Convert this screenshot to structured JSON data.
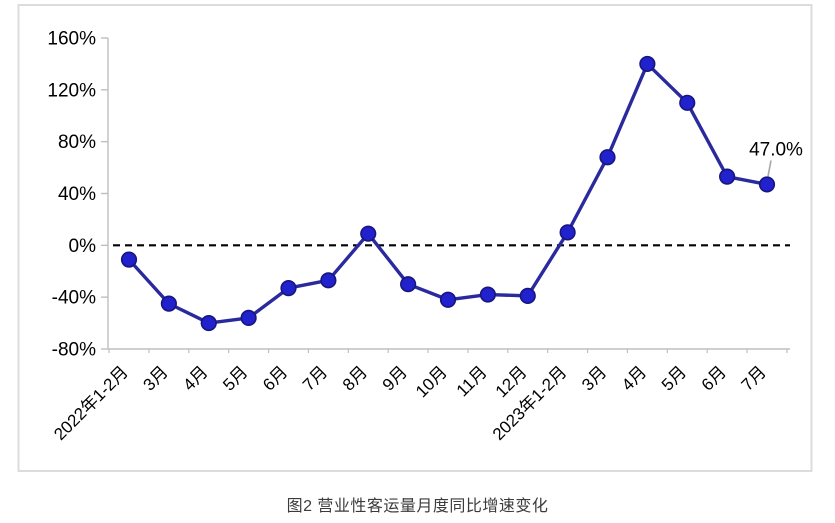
{
  "figure": {
    "caption": "图2 营业性客运量月度同比增速变化"
  },
  "chart_data": {
    "type": "line",
    "title": "图2 营业性客运量月度同比增速变化",
    "categories": [
      "2022年1-2月",
      "3月",
      "4月",
      "5月",
      "6月",
      "7月",
      "8月",
      "9月",
      "10月",
      "11月",
      "12月",
      "2023年1-2月",
      "3月",
      "4月",
      "5月",
      "6月",
      "7月"
    ],
    "series": [
      {
        "name": "营业性客运量月度同比增速",
        "values": [
          -11,
          -45,
          -60,
          -56,
          -33,
          -27,
          9,
          -30,
          -42,
          -38,
          -39,
          10,
          68,
          140,
          110,
          53,
          47
        ]
      }
    ],
    "y_axis": {
      "min": -80,
      "max": 160,
      "tick_step": 40,
      "tick_values": [
        160,
        120,
        80,
        40,
        0,
        -40,
        -80
      ],
      "tick_labels": [
        "160%",
        "120%",
        "80%",
        "40%",
        "0%",
        "-40%",
        "-80%"
      ]
    },
    "zero_line": {
      "style": "dashed",
      "color": "#000000"
    },
    "annotation": {
      "text": "47.0%",
      "point_index": 16
    },
    "legend": "none",
    "grid": false,
    "colors": {
      "line": "#2A2A9E",
      "marker": "#2121CE",
      "marker_stroke": "#16167E",
      "axis": "#BFBFBF",
      "border": "#DCDCDC",
      "annotation_leader": "#A9A9A9",
      "text": "#000000",
      "caption": "#3B3B3B"
    }
  }
}
